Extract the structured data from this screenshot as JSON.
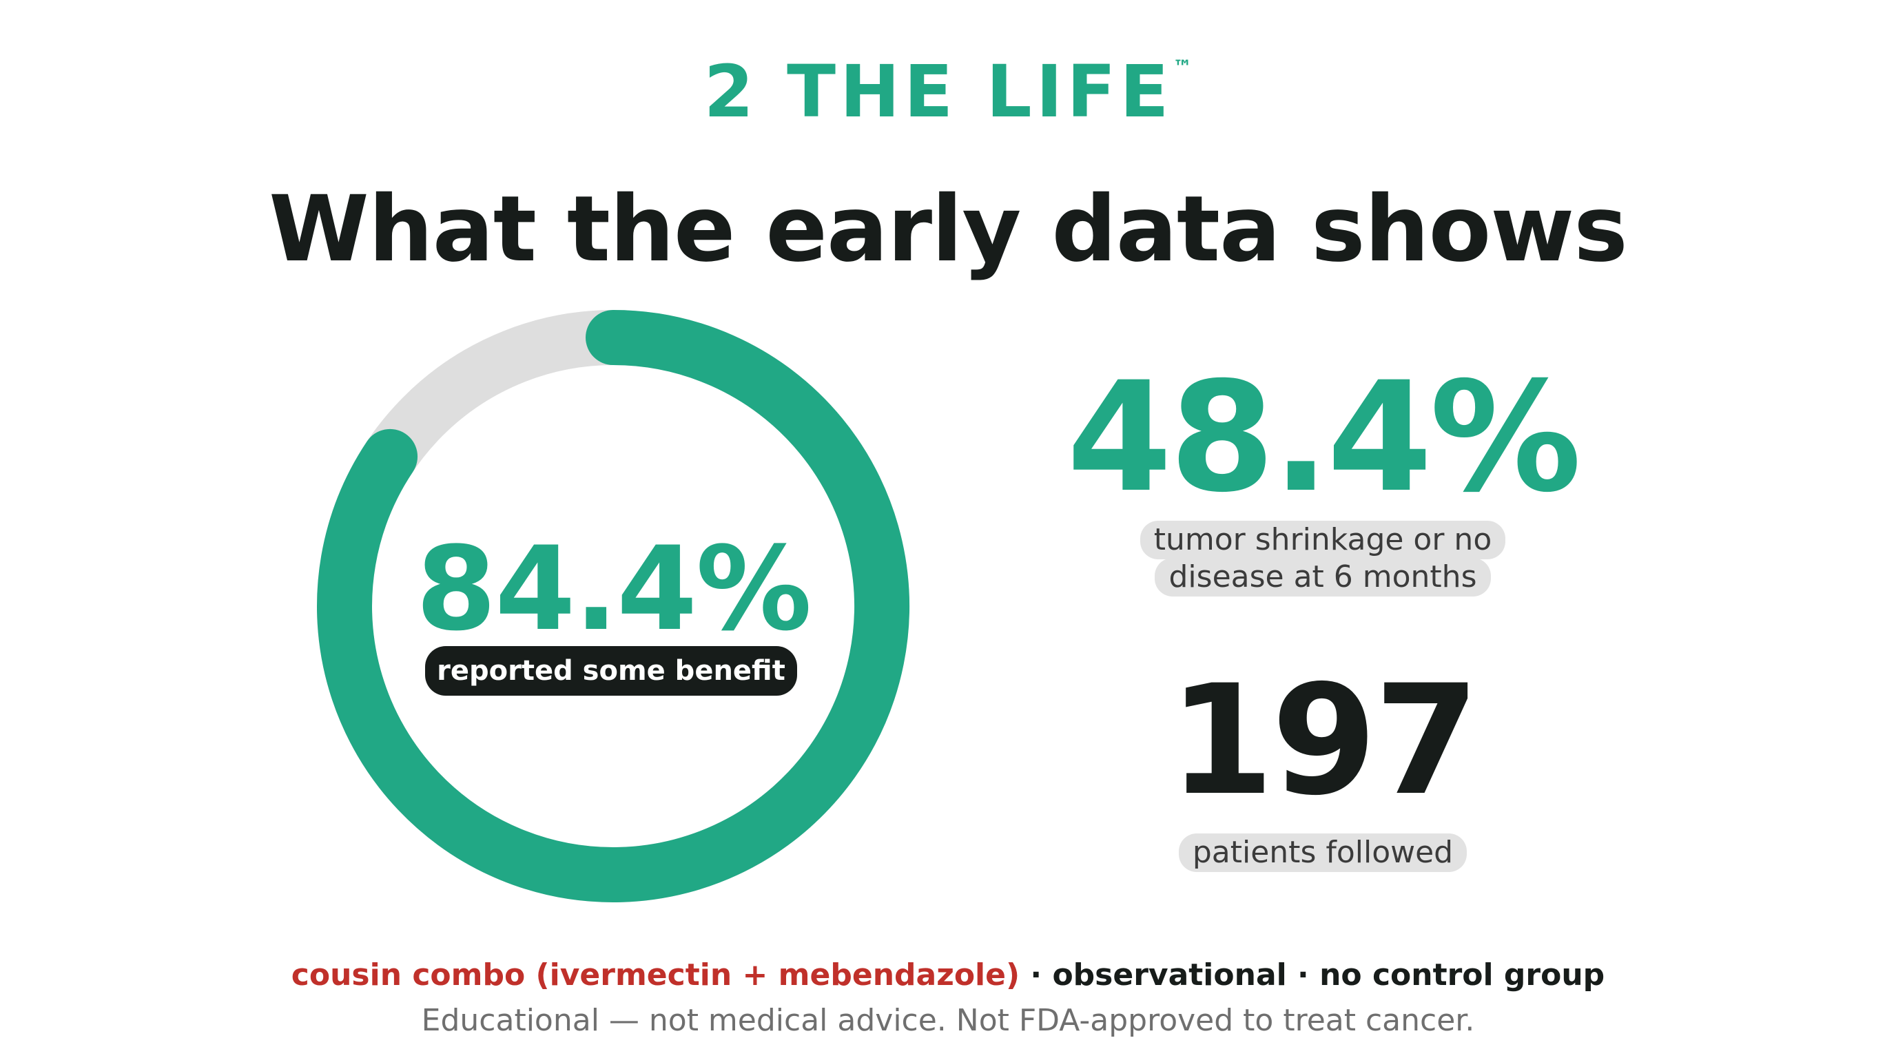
{
  "brand": {
    "name": "2 THE LIFE",
    "trademark": "™"
  },
  "headline": "What the early data shows",
  "ring_stat": {
    "value_text": "84.4%",
    "fraction": 0.844,
    "label": "reported some benefit"
  },
  "stat_shrinkage": {
    "value_text": "48.4%",
    "label_line1": "tumor shrinkage or no",
    "label_line2": "disease at 6 months"
  },
  "stat_patients": {
    "value_text": "197",
    "label": "patients followed"
  },
  "footer": {
    "combo_text": "cousin combo (ivermectin + mebendazole)",
    "meta_text": " · observational · no control group",
    "disclaimer": "Educational — not medical advice. Not FDA-approved to treat cancer."
  },
  "colors": {
    "accent": "#21a885",
    "track": "#dedede",
    "dark": "#171c1a",
    "warning_red": "#c0302a"
  }
}
